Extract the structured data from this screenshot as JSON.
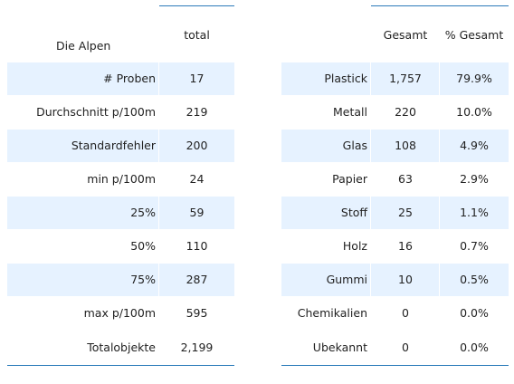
{
  "summary_table": {
    "title": "Die Alpen",
    "column_header": "total",
    "rows": [
      {
        "label": "# Proben",
        "value": "17"
      },
      {
        "label": "Durchschnitt p/100m",
        "value": "219"
      },
      {
        "label": "Standardfehler",
        "value": "200"
      },
      {
        "label": "min p/100m",
        "value": "24"
      },
      {
        "label": "25%",
        "value": "59"
      },
      {
        "label": "50%",
        "value": "110"
      },
      {
        "label": "75%",
        "value": "287"
      },
      {
        "label": "max p/100m",
        "value": "595"
      },
      {
        "label": "Totalobjekte",
        "value": "2,199"
      }
    ]
  },
  "material_table": {
    "column_headers": [
      "Gesamt",
      "% Gesamt"
    ],
    "rows": [
      {
        "label": "Plastick",
        "total": "1,757",
        "percent": "79.9%"
      },
      {
        "label": "Metall",
        "total": "220",
        "percent": "10.0%"
      },
      {
        "label": "Glas",
        "total": "108",
        "percent": "4.9%"
      },
      {
        "label": "Papier",
        "total": "63",
        "percent": "2.9%"
      },
      {
        "label": "Stoff",
        "total": "25",
        "percent": "1.1%"
      },
      {
        "label": "Holz",
        "total": "16",
        "percent": "0.7%"
      },
      {
        "label": "Gummi",
        "total": "10",
        "percent": "0.5%"
      },
      {
        "label": "Chemikalien",
        "total": "0",
        "percent": "0.0%"
      },
      {
        "label": "Ubekannt",
        "total": "0",
        "percent": "0.0%"
      }
    ]
  },
  "colors": {
    "row_shade": "#e6f2ff",
    "rule": "#2b7bba",
    "text": "#222222"
  }
}
